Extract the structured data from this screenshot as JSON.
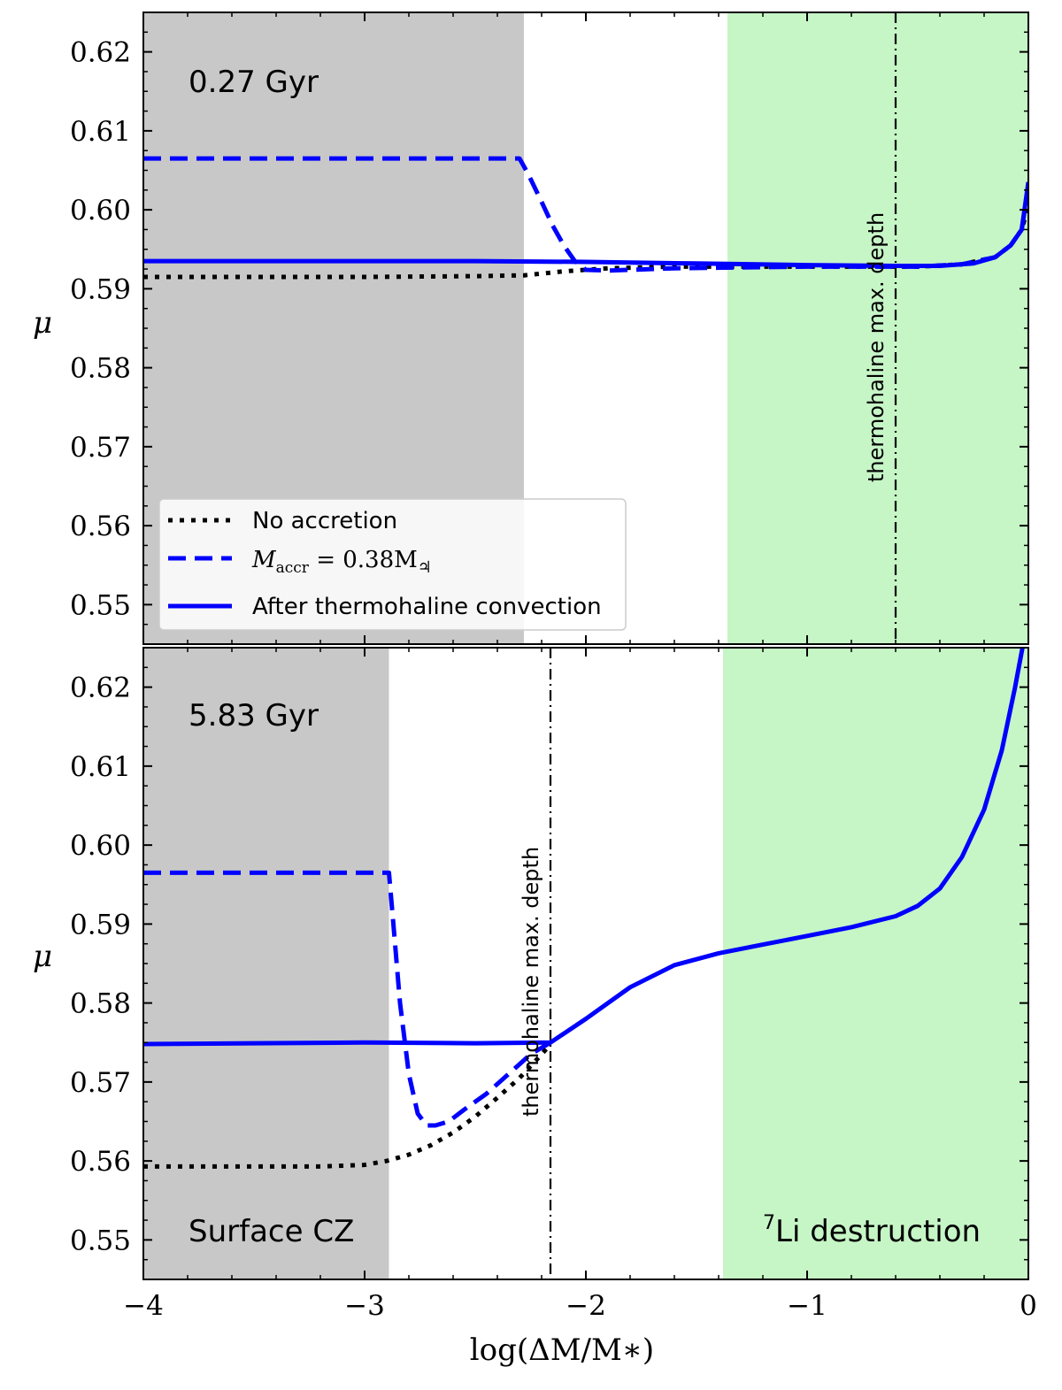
{
  "colors": {
    "blue": "#0000ff",
    "black": "#000000",
    "cz_fill": "#c8c8c8",
    "li_fill": "#c6f5c6"
  },
  "x_axis": {
    "label": "log(ΔM/M∗)",
    "ticks": [
      -4,
      -3,
      -2,
      -1,
      0
    ],
    "tick_labels": [
      "−4",
      "−3",
      "−2",
      "−1",
      "0"
    ],
    "xlim": [
      -4,
      0
    ]
  },
  "y_axis": {
    "label": "μ",
    "ylim": [
      0.545,
      0.625
    ],
    "ticks": [
      0.55,
      0.56,
      0.57,
      0.58,
      0.59,
      0.6,
      0.61,
      0.62
    ],
    "tick_labels": [
      "0.55",
      "0.56",
      "0.57",
      "0.58",
      "0.59",
      "0.60",
      "0.61",
      "0.62"
    ]
  },
  "legend": {
    "location": "lower-left of top panel",
    "entries": [
      {
        "label": "No accretion",
        "style": "dotted",
        "color": "#000000"
      },
      {
        "label_main": "M",
        "label_sub": "accr",
        "label_rest": " = 0.38M",
        "label_symbol": "♃",
        "style": "dashed",
        "color": "#0000ff"
      },
      {
        "label": "After thermohaline convection",
        "style": "solid",
        "color": "#0000ff"
      }
    ]
  },
  "chart_data": [
    {
      "type": "line",
      "title": "0.27 Gyr",
      "xlim": [
        -4,
        0
      ],
      "ylim": [
        0.545,
        0.625
      ],
      "regions": [
        {
          "name": "Surface CZ",
          "x_range": [
            -4,
            -2.28
          ],
          "color": "#c8c8c8"
        },
        {
          "name": "7Li destruction",
          "x_range": [
            -1.36,
            0
          ],
          "color": "#c6f5c6"
        }
      ],
      "vline": {
        "x": -0.6,
        "label": "thermohaline max. depth"
      },
      "series": [
        {
          "name": "No accretion",
          "style": "dotted",
          "color": "#000000",
          "x": [
            -4,
            -3,
            -2.5,
            -2.28,
            -2.1,
            -1.9,
            -1.6,
            -1.3,
            -1.0,
            -0.7,
            -0.5,
            -0.3,
            -0.15,
            -0.08,
            -0.03,
            0
          ],
          "y": [
            0.5915,
            0.5915,
            0.5916,
            0.5917,
            0.5922,
            0.5926,
            0.5928,
            0.5928,
            0.5928,
            0.5928,
            0.5928,
            0.5931,
            0.594,
            0.5955,
            0.5975,
            0.6005
          ]
        },
        {
          "name": "M_accr = 0.38M_J",
          "style": "dashed",
          "color": "#0000ff",
          "x": [
            -4,
            -2.3,
            -2.26,
            -2.2,
            -2.15,
            -2.1,
            -2.05,
            -2.0,
            -1.9,
            -1.6,
            -1.3,
            -1.0,
            -0.7,
            -0.5,
            -0.3,
            -0.15,
            -0.08,
            -0.03,
            0
          ],
          "y": [
            0.6065,
            0.6065,
            0.6045,
            0.601,
            0.598,
            0.5955,
            0.5935,
            0.5924,
            0.5923,
            0.5926,
            0.5927,
            0.5928,
            0.5928,
            0.5928,
            0.5931,
            0.594,
            0.5955,
            0.5975,
            0.603
          ]
        },
        {
          "name": "After thermohaline convection",
          "style": "solid",
          "color": "#0000ff",
          "x": [
            -4,
            -3,
            -2.5,
            -2.0,
            -1.5,
            -1.0,
            -0.6,
            -0.4,
            -0.25,
            -0.15,
            -0.08,
            -0.03,
            0
          ],
          "y": [
            0.5935,
            0.5935,
            0.5935,
            0.5934,
            0.5932,
            0.593,
            0.5929,
            0.5929,
            0.5932,
            0.594,
            0.5955,
            0.5975,
            0.6035
          ]
        }
      ]
    },
    {
      "type": "line",
      "title": "5.83 Gyr",
      "xlim": [
        -4,
        0
      ],
      "ylim": [
        0.545,
        0.625
      ],
      "regions": [
        {
          "name": "Surface CZ",
          "x_range": [
            -4,
            -2.89
          ],
          "color": "#c8c8c8"
        },
        {
          "name": "7Li destruction",
          "x_range": [
            -1.38,
            0
          ],
          "color": "#c6f5c6"
        }
      ],
      "vline": {
        "x": -2.16,
        "label": "thermohaline max. depth"
      },
      "series": [
        {
          "name": "No accretion",
          "style": "dotted",
          "color": "#000000",
          "x": [
            -4,
            -3.2,
            -3.0,
            -2.9,
            -2.8,
            -2.7,
            -2.6,
            -2.5,
            -2.4,
            -2.3,
            -2.2,
            -2.16
          ],
          "y": [
            0.5593,
            0.5593,
            0.5595,
            0.56,
            0.5608,
            0.562,
            0.5636,
            0.5656,
            0.568,
            0.5705,
            0.5735,
            0.5748
          ]
        },
        {
          "name": "M_accr = 0.38M_J",
          "style": "dashed",
          "color": "#0000ff",
          "x": [
            -4,
            -2.89,
            -2.87,
            -2.84,
            -2.8,
            -2.76,
            -2.72,
            -2.68,
            -2.62,
            -2.55,
            -2.45,
            -2.35,
            -2.25,
            -2.16
          ],
          "y": [
            0.5965,
            0.5965,
            0.59,
            0.58,
            0.571,
            0.566,
            0.5645,
            0.5645,
            0.565,
            0.5665,
            0.5685,
            0.571,
            0.5735,
            0.575
          ]
        },
        {
          "name": "After thermohaline convection",
          "style": "solid",
          "color": "#0000ff",
          "x": [
            -4,
            -3.5,
            -3.0,
            -2.5,
            -2.16,
            -2.0,
            -1.8,
            -1.6,
            -1.4,
            -1.2,
            -1.0,
            -0.8,
            -0.6,
            -0.5,
            -0.4,
            -0.3,
            -0.2,
            -0.12,
            -0.06,
            -0.02
          ],
          "y": [
            0.5748,
            0.5749,
            0.575,
            0.5749,
            0.575,
            0.578,
            0.582,
            0.5848,
            0.5863,
            0.5874,
            0.5885,
            0.5896,
            0.591,
            0.5923,
            0.5945,
            0.5985,
            0.6045,
            0.612,
            0.62,
            0.626
          ]
        }
      ]
    }
  ],
  "panel_labels": {
    "top_age": "0.27 Gyr",
    "bottom_age": "5.83 Gyr",
    "surface_cz": "Surface CZ",
    "li_sup": "7",
    "li_text": "Li destruction",
    "vline_label": "thermohaline max. depth"
  }
}
